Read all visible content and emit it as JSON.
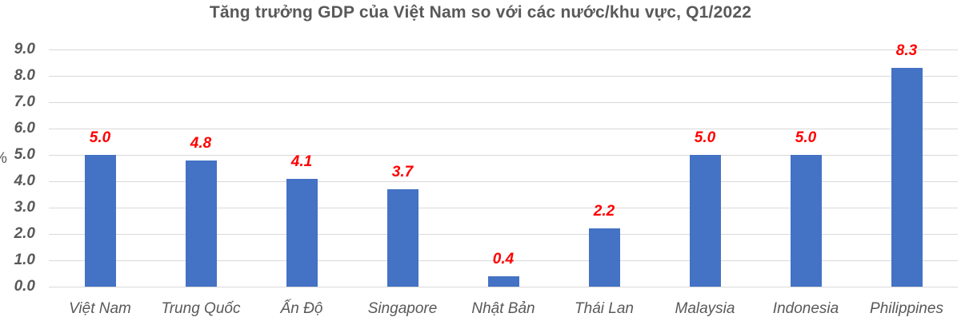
{
  "chart_data": {
    "type": "bar",
    "title": "Tăng trưởng GDP của Việt Nam so với các nước/khu vực, Q1/2022",
    "xlabel": "",
    "ylabel": "%",
    "categories": [
      "Việt Nam",
      "Trung Quốc",
      "Ấn Độ",
      "Singapore",
      "Nhật Bản",
      "Thái Lan",
      "Malaysia",
      "Indonesia",
      "Philippines"
    ],
    "values": [
      5.0,
      4.8,
      4.1,
      3.7,
      0.4,
      2.2,
      5.0,
      5.0,
      8.3
    ],
    "value_labels": [
      "5.0",
      "4.8",
      "4.1",
      "3.7",
      "0.4",
      "2.2",
      "5.0",
      "5.0",
      "8.3"
    ],
    "ylim": [
      0,
      9
    ],
    "yticks": [
      "0.0",
      "1.0",
      "2.0",
      "3.0",
      "4.0",
      "5.0",
      "6.0",
      "7.0",
      "8.0",
      "9.0"
    ],
    "grid": true,
    "legend": null,
    "colors": {
      "bar": "#4472c4",
      "data_label": "#ff0000",
      "text": "#595959",
      "grid": "#d9d9d9"
    }
  }
}
